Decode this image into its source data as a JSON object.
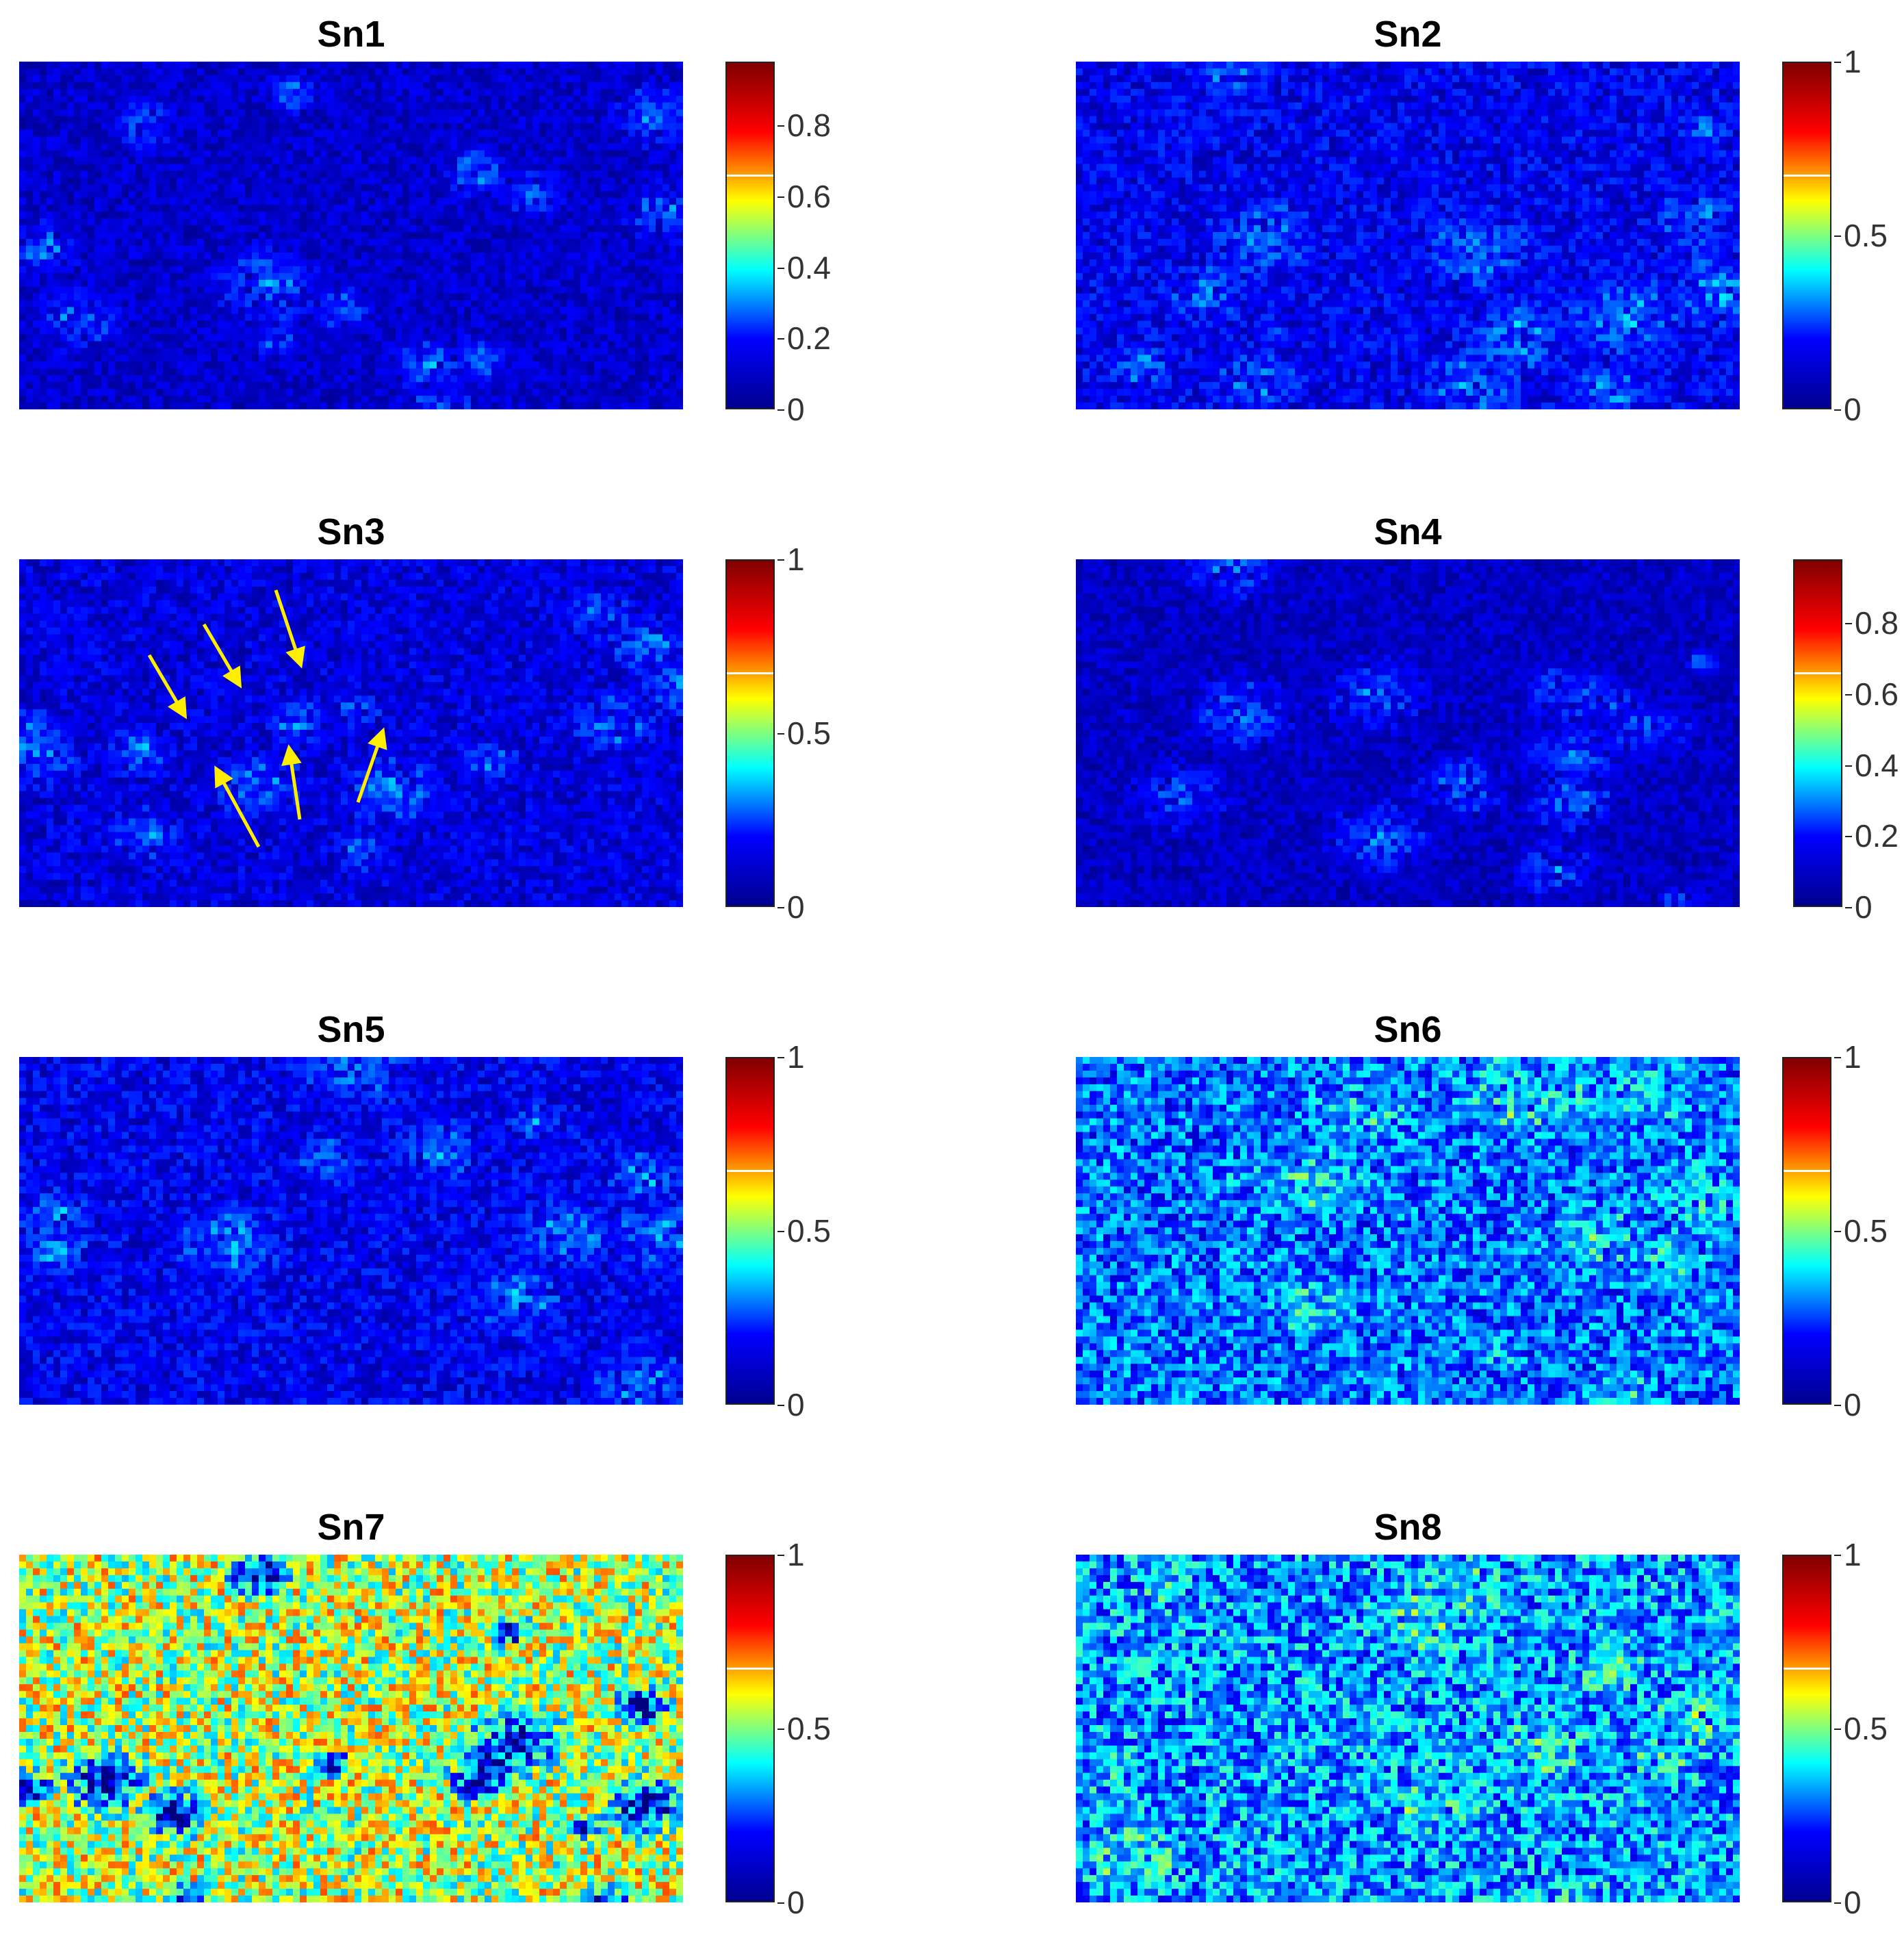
{
  "chart_data": [
    {
      "type": "heatmap",
      "title": "Sn1",
      "colormap": "jet",
      "colorbar_ticks": [
        "0",
        "0.2",
        "0.4",
        "0.6",
        "0.8"
      ],
      "clim": [
        0,
        0.98
      ],
      "level": 0.08
    },
    {
      "type": "heatmap",
      "title": "Sn2",
      "colormap": "jet",
      "colorbar_ticks": [
        "0",
        "0.5",
        "1"
      ],
      "clim": [
        0,
        1
      ],
      "level": 0.12
    },
    {
      "type": "heatmap",
      "title": "Sn3",
      "colormap": "jet",
      "colorbar_ticks": [
        "0",
        "0.5",
        "1"
      ],
      "clim": [
        0,
        1
      ],
      "level": 0.1
    },
    {
      "type": "heatmap",
      "title": "Sn4",
      "colormap": "jet",
      "colorbar_ticks": [
        "0",
        "0.2",
        "0.4",
        "0.6",
        "0.8"
      ],
      "clim": [
        0,
        0.98
      ],
      "level": 0.07
    },
    {
      "type": "heatmap",
      "title": "Sn5",
      "colormap": "jet",
      "colorbar_ticks": [
        "0",
        "0.5",
        "1"
      ],
      "clim": [
        0,
        1
      ],
      "level": 0.12
    },
    {
      "type": "heatmap",
      "title": "Sn6",
      "colormap": "jet",
      "colorbar_ticks": [
        "0",
        "0.5",
        "1"
      ],
      "clim": [
        0,
        1
      ],
      "level": 0.25
    },
    {
      "type": "heatmap",
      "title": "Sn7",
      "colormap": "jet",
      "colorbar_ticks": [
        "0",
        "0.5",
        "1"
      ],
      "clim": [
        0,
        1
      ],
      "level": 0.55
    },
    {
      "type": "heatmap",
      "title": "Sn8",
      "colormap": "jet",
      "colorbar_ticks": [
        "0",
        "0.5",
        "1"
      ],
      "clim": [
        0,
        1
      ],
      "level": 0.3
    }
  ],
  "colors": {
    "background": "#000080",
    "arrow": "#ffee00",
    "colormap_stops": [
      "#00008f",
      "#0000ff",
      "#00ffff",
      "#ffff00",
      "#ff0000",
      "#800000"
    ]
  }
}
